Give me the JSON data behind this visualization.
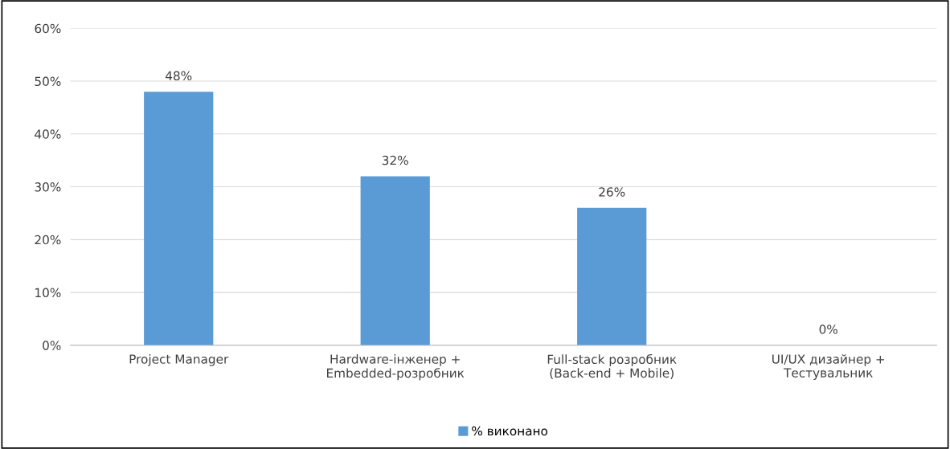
{
  "chart_data": {
    "type": "bar",
    "categories": [
      "Project Manager",
      "Hardware-інженер +\nEmbedded-розробник",
      "Full-stack розробник\n(Back-end + Mobile)",
      "UI/UX дизайнер +\nТестувальник"
    ],
    "series": [
      {
        "name": "% виконано",
        "color": "#5b9bd5",
        "values": [
          48,
          32,
          26,
          0
        ]
      }
    ],
    "value_labels": [
      "48%",
      "32%",
      "26%",
      "0%"
    ],
    "ylim": [
      0,
      60
    ],
    "yticks": [
      {
        "value": 0,
        "label": "0%"
      },
      {
        "value": 10,
        "label": "10%"
      },
      {
        "value": 20,
        "label": "20%"
      },
      {
        "value": 30,
        "label": "30%"
      },
      {
        "value": 40,
        "label": "40%"
      },
      {
        "value": 50,
        "label": "50%"
      },
      {
        "value": 60,
        "label": "60%"
      }
    ],
    "grid": "y",
    "legend": "bottom"
  }
}
